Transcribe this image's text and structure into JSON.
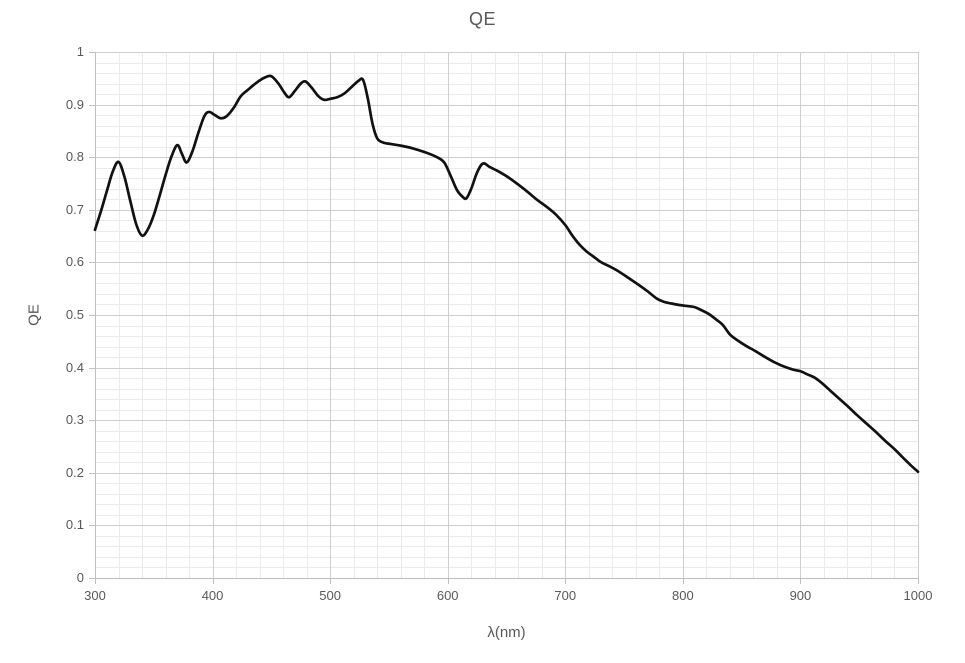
{
  "colors": {
    "background": "#ffffff",
    "curve": "#111111",
    "grid_minor": "#ebebeb",
    "grid_major": "#cfcfcf",
    "axis": "#bfbfbf",
    "text": "#595959"
  },
  "chart_data": {
    "type": "line",
    "title": "QE",
    "xlabel": "λ(nm)",
    "ylabel": "QE",
    "xlim": [
      300,
      1000
    ],
    "ylim": [
      0,
      1
    ],
    "x_major_step": 100,
    "x_minor_step": 20,
    "y_major_step": 0.1,
    "y_minor_step": 0.02,
    "grid": "major+minor",
    "legend_position": "none",
    "x_ticks": [
      300,
      400,
      500,
      600,
      700,
      800,
      900,
      1000
    ],
    "y_ticks": [
      {
        "value": 0,
        "label": "0"
      },
      {
        "value": 0.1,
        "label": "0.1"
      },
      {
        "value": 0.2,
        "label": "0.2"
      },
      {
        "value": 0.3,
        "label": "0.3"
      },
      {
        "value": 0.4,
        "label": "0.4"
      },
      {
        "value": 0.5,
        "label": "0.5"
      },
      {
        "value": 0.6,
        "label": "0.6"
      },
      {
        "value": 0.7,
        "label": "0.7"
      },
      {
        "value": 0.8,
        "label": "0.8"
      },
      {
        "value": 0.9,
        "label": "0.9"
      },
      {
        "value": 1,
        "label": "1"
      }
    ],
    "series": [
      {
        "name": "QE",
        "color": "#111111",
        "points": [
          [
            300,
            0.662
          ],
          [
            305,
            0.697
          ],
          [
            310,
            0.735
          ],
          [
            315,
            0.772
          ],
          [
            320,
            0.791
          ],
          [
            325,
            0.763
          ],
          [
            330,
            0.717
          ],
          [
            335,
            0.673
          ],
          [
            340,
            0.651
          ],
          [
            345,
            0.663
          ],
          [
            350,
            0.69
          ],
          [
            355,
            0.727
          ],
          [
            360,
            0.766
          ],
          [
            365,
            0.801
          ],
          [
            370,
            0.823
          ],
          [
            374,
            0.806
          ],
          [
            378,
            0.79
          ],
          [
            383,
            0.812
          ],
          [
            388,
            0.847
          ],
          [
            393,
            0.878
          ],
          [
            397,
            0.886
          ],
          [
            402,
            0.88
          ],
          [
            407,
            0.874
          ],
          [
            412,
            0.878
          ],
          [
            418,
            0.894
          ],
          [
            424,
            0.916
          ],
          [
            430,
            0.928
          ],
          [
            437,
            0.941
          ],
          [
            444,
            0.951
          ],
          [
            450,
            0.954
          ],
          [
            456,
            0.94
          ],
          [
            461,
            0.923
          ],
          [
            465,
            0.914
          ],
          [
            470,
            0.926
          ],
          [
            475,
            0.94
          ],
          [
            479,
            0.944
          ],
          [
            484,
            0.933
          ],
          [
            490,
            0.916
          ],
          [
            495,
            0.909
          ],
          [
            500,
            0.911
          ],
          [
            506,
            0.914
          ],
          [
            512,
            0.921
          ],
          [
            518,
            0.933
          ],
          [
            524,
            0.945
          ],
          [
            528,
            0.947
          ],
          [
            532,
            0.912
          ],
          [
            536,
            0.864
          ],
          [
            540,
            0.836
          ],
          [
            545,
            0.828
          ],
          [
            552,
            0.825
          ],
          [
            560,
            0.822
          ],
          [
            570,
            0.817
          ],
          [
            580,
            0.81
          ],
          [
            590,
            0.801
          ],
          [
            597,
            0.79
          ],
          [
            603,
            0.762
          ],
          [
            608,
            0.737
          ],
          [
            613,
            0.724
          ],
          [
            616,
            0.722
          ],
          [
            620,
            0.74
          ],
          [
            625,
            0.771
          ],
          [
            630,
            0.788
          ],
          [
            636,
            0.781
          ],
          [
            644,
            0.772
          ],
          [
            652,
            0.761
          ],
          [
            660,
            0.748
          ],
          [
            668,
            0.734
          ],
          [
            676,
            0.719
          ],
          [
            684,
            0.706
          ],
          [
            692,
            0.691
          ],
          [
            700,
            0.671
          ],
          [
            706,
            0.651
          ],
          [
            712,
            0.634
          ],
          [
            718,
            0.621
          ],
          [
            724,
            0.611
          ],
          [
            730,
            0.601
          ],
          [
            738,
            0.592
          ],
          [
            746,
            0.582
          ],
          [
            754,
            0.57
          ],
          [
            762,
            0.558
          ],
          [
            770,
            0.545
          ],
          [
            778,
            0.531
          ],
          [
            784,
            0.525
          ],
          [
            790,
            0.522
          ],
          [
            797,
            0.519
          ],
          [
            804,
            0.517
          ],
          [
            810,
            0.515
          ],
          [
            816,
            0.509
          ],
          [
            822,
            0.502
          ],
          [
            828,
            0.492
          ],
          [
            834,
            0.481
          ],
          [
            840,
            0.463
          ],
          [
            847,
            0.451
          ],
          [
            854,
            0.441
          ],
          [
            862,
            0.431
          ],
          [
            870,
            0.42
          ],
          [
            878,
            0.41
          ],
          [
            886,
            0.402
          ],
          [
            894,
            0.396
          ],
          [
            900,
            0.393
          ],
          [
            906,
            0.387
          ],
          [
            912,
            0.381
          ],
          [
            918,
            0.371
          ],
          [
            925,
            0.357
          ],
          [
            932,
            0.343
          ],
          [
            940,
            0.327
          ],
          [
            948,
            0.31
          ],
          [
            956,
            0.294
          ],
          [
            964,
            0.278
          ],
          [
            972,
            0.261
          ],
          [
            980,
            0.245
          ],
          [
            988,
            0.227
          ],
          [
            994,
            0.214
          ],
          [
            1000,
            0.202
          ]
        ]
      }
    ]
  }
}
